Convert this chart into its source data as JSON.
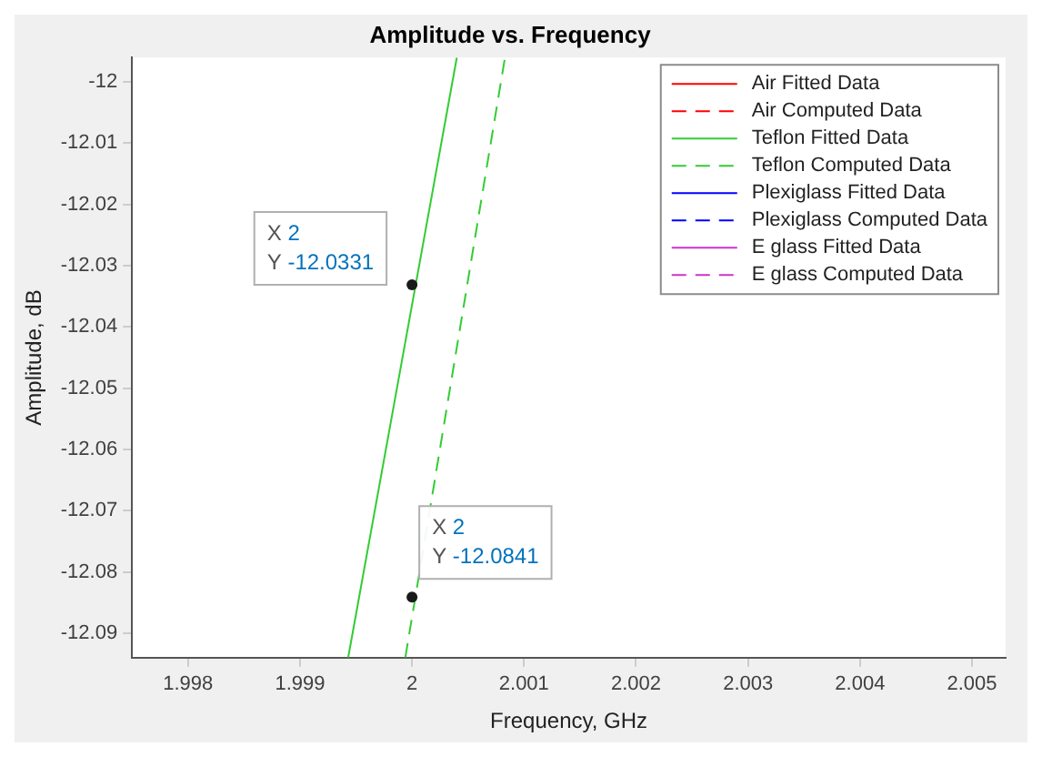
{
  "chart_data": {
    "type": "line",
    "title": "Amplitude vs. Frequency",
    "xlabel": "Frequency, GHz",
    "ylabel": "Amplitude, dB",
    "xlim": [
      1.9975,
      2.0053
    ],
    "xticks": [
      1.998,
      1.999,
      2,
      2.001,
      2.002,
      2.003,
      2.004,
      2.005
    ],
    "ylim": [
      -12.094,
      -11.996
    ],
    "yticks": [
      -12.09,
      -12.08,
      -12.07,
      -12.06,
      -12.05,
      -12.04,
      -12.03,
      -12.02,
      -12.01,
      -12
    ],
    "grid": false,
    "legend": "top right",
    "series": [
      {
        "name": "Air Fitted Data",
        "color": "#ff0000",
        "line_style": "solid"
      },
      {
        "name": "Air Computed Data",
        "color": "#ff0000",
        "line_style": "dashed"
      },
      {
        "name": "Teflon Fitted Data",
        "color": "#33cc33",
        "line_style": "solid",
        "x": [
          1.99943,
          2.0004
        ],
        "values": [
          -12.094,
          -11.996
        ]
      },
      {
        "name": "Teflon Computed Data",
        "color": "#33cc33",
        "line_style": "dashed",
        "x": [
          1.99994,
          2.00083
        ],
        "values": [
          -12.094,
          -11.996
        ]
      },
      {
        "name": "Plexiglass Fitted Data",
        "color": "#0000ff",
        "line_style": "solid"
      },
      {
        "name": "Plexiglass Computed Data",
        "color": "#0000ff",
        "line_style": "dashed"
      },
      {
        "name": "E glass Fitted Data",
        "color": "#cc33cc",
        "line_style": "solid"
      },
      {
        "name": "E glass Computed Data",
        "color": "#cc33cc",
        "line_style": "dashed"
      }
    ],
    "annotations": [
      {
        "text": "X 2\nY -12.0331",
        "x": 2,
        "y": -12.0331
      },
      {
        "text": "X 2\nY -12.0841",
        "x": 2,
        "y": -12.0841
      }
    ]
  }
}
